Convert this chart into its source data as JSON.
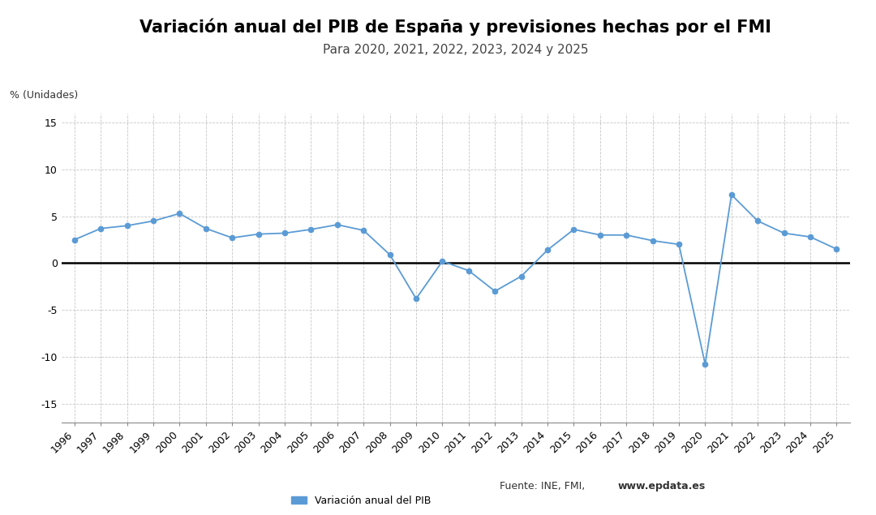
{
  "title": "Variación anual del PIB de España y previsiones hechas por el FMI",
  "subtitle": "Para 2020, 2021, 2022, 2023, 2024 y 2025",
  "ylabel": "% (Unidades)",
  "years": [
    1996,
    1997,
    1998,
    1999,
    2000,
    2001,
    2002,
    2003,
    2004,
    2005,
    2006,
    2007,
    2008,
    2009,
    2010,
    2011,
    2012,
    2013,
    2014,
    2015,
    2016,
    2017,
    2018,
    2019,
    2020,
    2021,
    2022,
    2023,
    2024,
    2025
  ],
  "values": [
    2.5,
    3.7,
    4.0,
    4.5,
    5.3,
    3.7,
    2.7,
    3.1,
    3.2,
    3.6,
    4.1,
    3.5,
    0.9,
    -3.8,
    0.2,
    -0.8,
    -3.0,
    -1.4,
    1.4,
    3.6,
    3.0,
    3.0,
    2.4,
    2.0,
    -10.8,
    7.3,
    4.5,
    3.2,
    2.8,
    1.5
  ],
  "line_color": "#5b9bd5",
  "marker_color": "#5b9bd5",
  "zero_line_color": "#000000",
  "background_color": "#ffffff",
  "grid_color": "#c0c0c0",
  "ylim": [
    -17,
    16
  ],
  "yticks": [
    -15,
    -10,
    -5,
    0,
    5,
    10,
    15
  ],
  "legend_label": "Variación anual del PIB",
  "source_text": "Fuente: INE, FMI, www.epdata.es",
  "source_bold": "www.epdata.es",
  "title_fontsize": 15,
  "subtitle_fontsize": 11,
  "axis_fontsize": 9,
  "legend_fontsize": 9,
  "ylabel_fontsize": 9
}
